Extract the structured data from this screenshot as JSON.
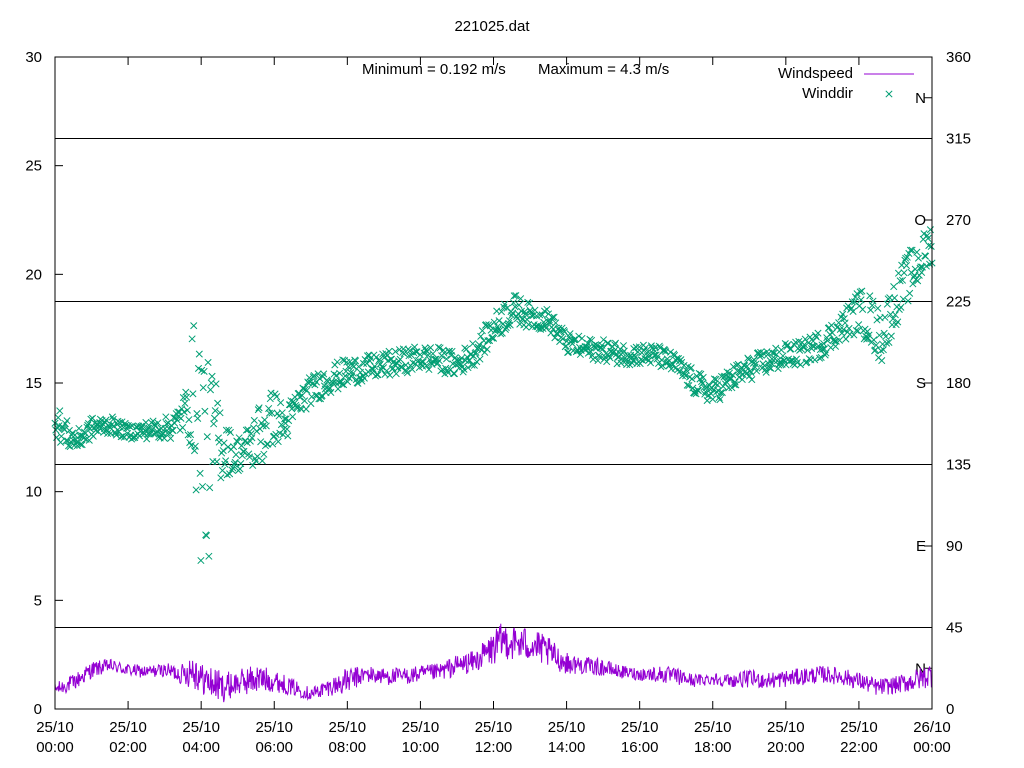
{
  "chart_data": {
    "type": "line+scatter",
    "title": "221025.dat",
    "annotation": {
      "minimum": "Minimum = 0.192 m/s",
      "maximum": "Maximum = 4.3 m/s"
    },
    "x_ticks": [
      {
        "h": 0,
        "date": "25/10",
        "time": "00:00"
      },
      {
        "h": 2,
        "date": "25/10",
        "time": "02:00"
      },
      {
        "h": 4,
        "date": "25/10",
        "time": "04:00"
      },
      {
        "h": 6,
        "date": "25/10",
        "time": "06:00"
      },
      {
        "h": 8,
        "date": "25/10",
        "time": "08:00"
      },
      {
        "h": 10,
        "date": "25/10",
        "time": "10:00"
      },
      {
        "h": 12,
        "date": "25/10",
        "time": "12:00"
      },
      {
        "h": 14,
        "date": "25/10",
        "time": "14:00"
      },
      {
        "h": 16,
        "date": "25/10",
        "time": "16:00"
      },
      {
        "h": 18,
        "date": "25/10",
        "time": "18:00"
      },
      {
        "h": 20,
        "date": "25/10",
        "time": "20:00"
      },
      {
        "h": 22,
        "date": "25/10",
        "time": "22:00"
      },
      {
        "h": 24,
        "date": "26/10",
        "time": "00:00"
      }
    ],
    "x_range": [
      0,
      24
    ],
    "y_left": {
      "range": [
        0,
        30
      ],
      "ticks": [
        0,
        5,
        10,
        15,
        20,
        25,
        30
      ]
    },
    "y_right": {
      "range": [
        0,
        360
      ],
      "ticks": [
        0,
        45,
        90,
        135,
        180,
        225,
        270,
        315,
        360
      ]
    },
    "direction_lines": [
      45,
      135,
      225,
      315
    ],
    "compass_labels": [
      {
        "deg": 337.5,
        "label": "N"
      },
      {
        "deg": 270,
        "label": "O"
      },
      {
        "deg": 180,
        "label": "S"
      },
      {
        "deg": 90,
        "label": "E"
      },
      {
        "deg": 22.5,
        "label": "N"
      }
    ],
    "legend": {
      "position": "top-right",
      "entries": [
        "Windspeed",
        "Winddir"
      ]
    },
    "colors": {
      "windspeed": "#9400d3",
      "winddir": "#009e73",
      "axes": "#000000"
    },
    "series": [
      {
        "name": "Windspeed",
        "axis": "left",
        "style": "line",
        "hours": [
          0,
          0.5,
          1,
          1.5,
          2,
          2.5,
          3,
          3.5,
          3.8,
          4,
          4.3,
          4.6,
          5,
          5.5,
          6,
          6.5,
          7,
          7.5,
          8,
          8.5,
          9,
          9.5,
          10,
          10.5,
          11,
          11.5,
          12,
          12.3,
          12.6,
          13,
          13.5,
          14,
          14.5,
          15,
          15.5,
          16,
          16.5,
          17,
          17.5,
          18,
          18.5,
          19,
          19.5,
          20,
          20.5,
          21,
          21.5,
          22,
          22.5,
          23,
          23.5,
          24
        ],
        "values": [
          0.9,
          1.2,
          1.8,
          2.0,
          1.8,
          1.7,
          1.8,
          1.6,
          1.9,
          1.4,
          1.2,
          1.0,
          1.2,
          1.4,
          1.3,
          1.0,
          0.7,
          1.0,
          1.3,
          1.6,
          1.5,
          1.5,
          1.6,
          1.7,
          2.0,
          2.2,
          2.8,
          3.2,
          3.0,
          3.0,
          2.6,
          2.1,
          2.0,
          1.9,
          1.7,
          1.6,
          1.6,
          1.5,
          1.3,
          1.4,
          1.3,
          1.4,
          1.3,
          1.4,
          1.5,
          1.6,
          1.5,
          1.3,
          1.0,
          1.1,
          1.3,
          1.6
        ],
        "amplitude": [
          0.3,
          0.4,
          0.4,
          0.3,
          0.3,
          0.3,
          0.3,
          0.5,
          1.0,
          0.7,
          0.8,
          0.7,
          0.6,
          0.7,
          0.5,
          0.4,
          0.3,
          0.4,
          0.6,
          0.4,
          0.4,
          0.4,
          0.4,
          0.4,
          0.5,
          0.5,
          0.8,
          0.9,
          0.8,
          0.8,
          0.7,
          0.5,
          0.4,
          0.4,
          0.3,
          0.3,
          0.4,
          0.4,
          0.3,
          0.3,
          0.3,
          0.4,
          0.4,
          0.4,
          0.4,
          0.4,
          0.4,
          0.4,
          0.4,
          0.4,
          0.5,
          0.6
        ]
      },
      {
        "name": "Winddir",
        "axis": "right",
        "style": "points-x",
        "hours": [
          0,
          0.3,
          0.6,
          1,
          1.5,
          2,
          2.5,
          3,
          3.3,
          3.6,
          3.8,
          4,
          4.1,
          4.2,
          4.3,
          4.5,
          4.8,
          5,
          5.3,
          5.6,
          6,
          6.3,
          6.6,
          7,
          7.5,
          8,
          8.5,
          9,
          9.5,
          10,
          10.5,
          11,
          11.5,
          12,
          12.3,
          12.6,
          13,
          13.5,
          14,
          14.5,
          15,
          15.5,
          16,
          16.5,
          17,
          17.5,
          18,
          18.5,
          19,
          19.5,
          20,
          20.5,
          21,
          21.5,
          22,
          22.3,
          22.6,
          23,
          23.3,
          23.6,
          24
        ],
        "values": [
          160,
          152,
          148,
          155,
          157,
          153,
          154,
          155,
          157,
          166,
          175,
          148,
          140,
          135,
          145,
          150,
          142,
          141,
          145,
          151,
          162,
          156,
          168,
          176,
          182,
          186,
          188,
          190,
          192,
          194,
          193,
          190,
          197,
          210,
          217,
          221,
          217,
          215,
          202,
          199,
          198,
          196,
          196,
          195,
          190,
          180,
          175,
          182,
          188,
          192,
          195,
          197,
          202,
          210,
          220,
          215,
          205,
          225,
          237,
          245,
          258
        ],
        "spread": [
          10,
          8,
          6,
          6,
          5,
          4,
          5,
          6,
          8,
          12,
          40,
          70,
          70,
          55,
          45,
          25,
          12,
          10,
          12,
          20,
          15,
          10,
          8,
          8,
          8,
          8,
          7,
          7,
          7,
          7,
          7,
          7,
          7,
          8,
          9,
          8,
          7,
          6,
          6,
          6,
          6,
          6,
          6,
          6,
          6,
          7,
          7,
          7,
          7,
          7,
          7,
          7,
          8,
          8,
          12,
          15,
          15,
          14,
          14,
          13,
          12
        ]
      }
    ]
  }
}
